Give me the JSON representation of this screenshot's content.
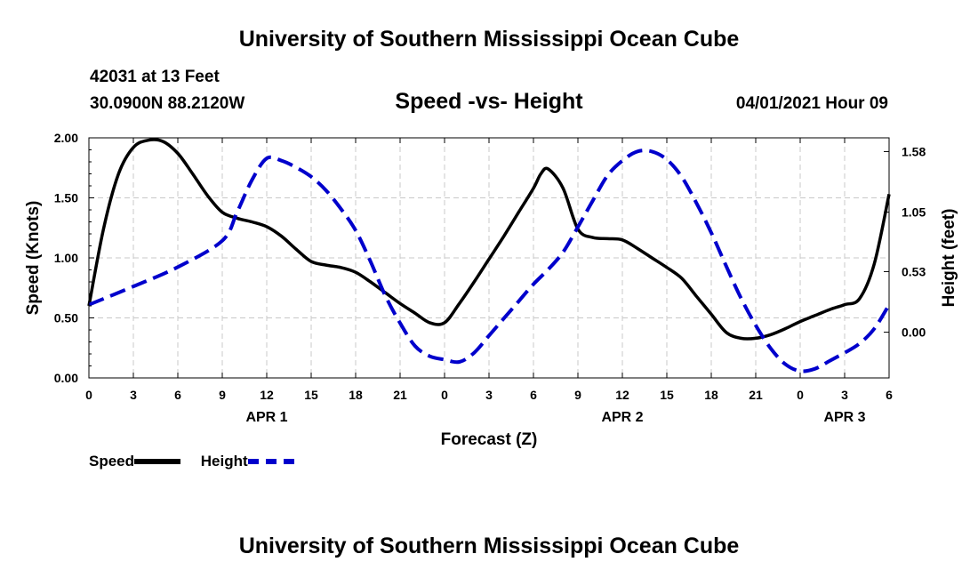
{
  "header": {
    "top_title": "University of Southern Mississippi Ocean Cube",
    "bottom_title": "University of Southern Mississippi Ocean Cube",
    "station_id": "42031 at 13 Feet",
    "station_coords": "30.0900N  88.2120W",
    "plot_title": "Speed -vs- Height",
    "date_hour": "04/01/2021 Hour 09"
  },
  "legend": {
    "speed_label": "Speed",
    "height_label": "Height"
  },
  "colors": {
    "speed": "#000000",
    "height": "#0000cc",
    "grid": "#c8c8c8"
  },
  "chart_data": {
    "type": "line",
    "title": "Speed -vs- Height",
    "xlabel": "Forecast (Z)",
    "ylabel": "Speed (Knots)",
    "y2label": "Height (feet)",
    "x_unit": "hours since APR 1 00Z",
    "xlim": [
      0,
      54
    ],
    "ylim": [
      0,
      2.0
    ],
    "y2lim": [
      -0.4,
      1.7
    ],
    "x_ticks": [
      0,
      3,
      6,
      9,
      12,
      15,
      18,
      21,
      24,
      27,
      30,
      33,
      36,
      39,
      42,
      45,
      48,
      51,
      54
    ],
    "x_tick_labels": [
      "0",
      "3",
      "6",
      "9",
      "12",
      "15",
      "18",
      "21",
      "0",
      "3",
      "6",
      "9",
      "12",
      "15",
      "18",
      "21",
      "0",
      "3",
      "6"
    ],
    "day_labels": [
      {
        "x": 12,
        "label": "APR 1"
      },
      {
        "x": 36,
        "label": "APR 2"
      },
      {
        "x": 51,
        "label": "APR 3"
      }
    ],
    "y_ticks": [
      0.0,
      0.5,
      1.0,
      1.5,
      2.0
    ],
    "y_tick_labels": [
      "0.00",
      "0.50",
      "1.00",
      "1.50",
      "2.00"
    ],
    "y2_ticks": [
      0.0,
      0.53,
      1.05,
      1.58
    ],
    "y2_tick_labels": [
      "0.00",
      "0.53",
      "1.05",
      "1.58"
    ],
    "grid": true,
    "series": [
      {
        "name": "Speed",
        "axis": "left",
        "style": "solid",
        "x": [
          0,
          1,
          2,
          3,
          4,
          5,
          6,
          7,
          8,
          9,
          10,
          11,
          12,
          13,
          14,
          15,
          16,
          17,
          18,
          19,
          20,
          21,
          22,
          23,
          24,
          25,
          26,
          27,
          28,
          29,
          30,
          30.5,
          31,
          32,
          33,
          34,
          35,
          36,
          37,
          38,
          39,
          40,
          41,
          42,
          43,
          44,
          45,
          46,
          47,
          48,
          49,
          50,
          51,
          52,
          53,
          54
        ],
        "y": [
          0.6,
          1.25,
          1.7,
          1.92,
          1.98,
          1.97,
          1.87,
          1.7,
          1.52,
          1.38,
          1.33,
          1.3,
          1.26,
          1.18,
          1.07,
          0.97,
          0.94,
          0.92,
          0.88,
          0.8,
          0.71,
          0.62,
          0.54,
          0.46,
          0.46,
          0.62,
          0.8,
          0.99,
          1.18,
          1.38,
          1.58,
          1.7,
          1.74,
          1.58,
          1.24,
          1.17,
          1.16,
          1.15,
          1.08,
          1.0,
          0.92,
          0.83,
          0.68,
          0.53,
          0.38,
          0.33,
          0.33,
          0.36,
          0.41,
          0.47,
          0.52,
          0.57,
          0.61,
          0.66,
          0.95,
          1.53
        ]
      },
      {
        "name": "Height",
        "axis": "right",
        "style": "dashed",
        "x": [
          0,
          3,
          6,
          9,
          10,
          11,
          12,
          13,
          14,
          15,
          16,
          17,
          18,
          19,
          20,
          21,
          22,
          23,
          24,
          25,
          26,
          27,
          28,
          29,
          30,
          31,
          32,
          33,
          34,
          35,
          36,
          37,
          38,
          39,
          40,
          41,
          42,
          43,
          44,
          45,
          46,
          47,
          48,
          49,
          50,
          51,
          52,
          53,
          54
        ],
        "y": [
          0.24,
          0.4,
          0.57,
          0.8,
          1.05,
          1.33,
          1.52,
          1.5,
          1.44,
          1.36,
          1.24,
          1.08,
          0.89,
          0.62,
          0.32,
          0.08,
          -0.12,
          -0.21,
          -0.24,
          -0.26,
          -0.18,
          -0.03,
          0.12,
          0.27,
          0.42,
          0.55,
          0.7,
          0.92,
          1.15,
          1.37,
          1.5,
          1.58,
          1.58,
          1.51,
          1.36,
          1.13,
          0.87,
          0.58,
          0.3,
          0.06,
          -0.14,
          -0.28,
          -0.34,
          -0.32,
          -0.25,
          -0.18,
          -0.1,
          0.03,
          0.24
        ]
      }
    ]
  }
}
